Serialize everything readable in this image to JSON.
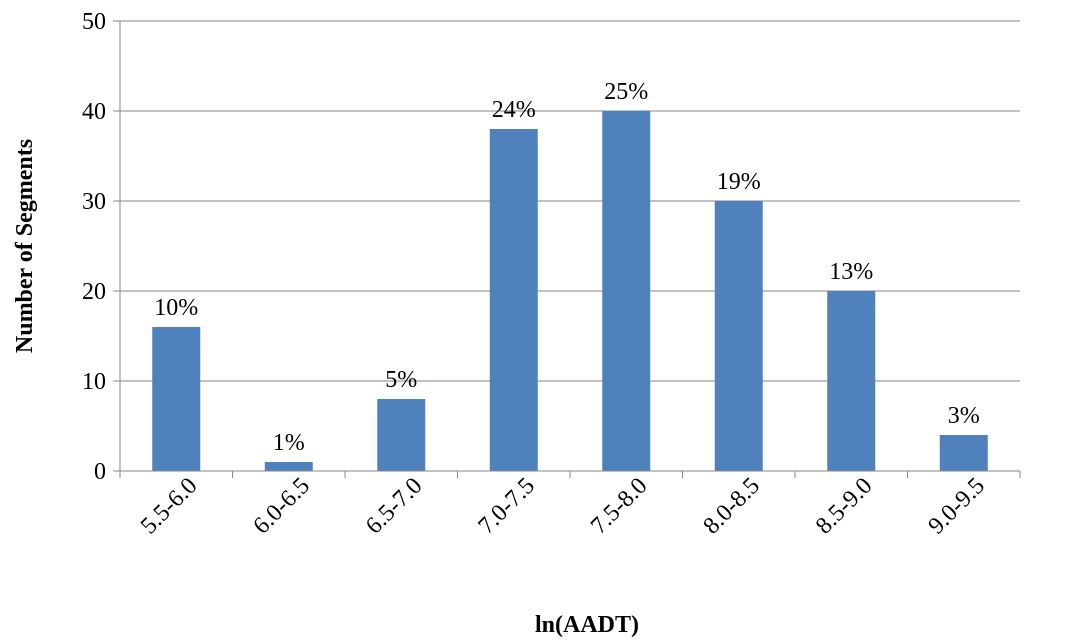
{
  "chart_data": {
    "type": "bar",
    "title": "",
    "xlabel": "ln(AADT)",
    "ylabel": "Number of Segments",
    "categories": [
      "5.5-6.0",
      "6.0-6.5",
      "6.5-7.0",
      "7.0-7.5",
      "7.5-8.0",
      "8.0-8.5",
      "8.5-9.0",
      "9.0-9.5"
    ],
    "values": [
      16,
      1,
      8,
      38,
      40,
      30,
      20,
      4
    ],
    "data_labels": [
      "10%",
      "1%",
      "5%",
      "24%",
      "25%",
      "19%",
      "13%",
      "3%"
    ],
    "ylim": [
      0,
      50
    ],
    "yticks": [
      0,
      10,
      20,
      30,
      40,
      50
    ],
    "grid": true,
    "legend": "none",
    "bar_color": "#4F81BD"
  }
}
